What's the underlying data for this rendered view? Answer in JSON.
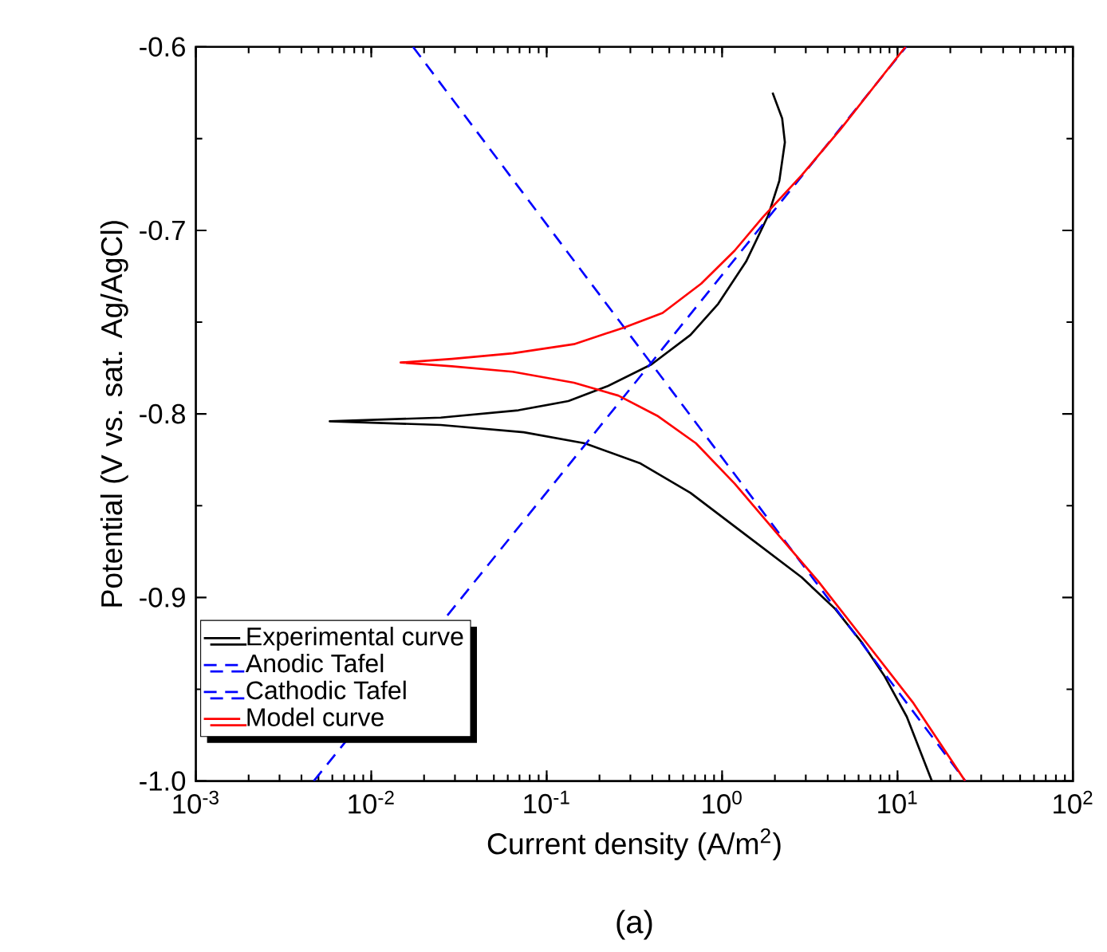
{
  "chart_data": {
    "type": "line",
    "xlabel": "Current density (A/m$^{2}$)",
    "ylabel": "Potential (V vs. sat. Ag/AgCl)",
    "annotations": [
      "(a)"
    ],
    "log": "x",
    "legend": "bottom left",
    "xlim": [
      0.001,
      100
    ],
    "ylim": [
      -1.0,
      -0.6
    ],
    "xticks": [
      {
        "value": 0.001,
        "label": "10$^{-3}$"
      },
      {
        "value": 0.01,
        "label": "10$^{-2}$"
      },
      {
        "value": 0.1,
        "label": "10$^{-1}$"
      },
      {
        "value": 1,
        "label": "10$^{0}$"
      },
      {
        "value": 10,
        "label": "10$^{1}$"
      },
      {
        "value": 100,
        "label": "10$^{2}$"
      }
    ],
    "yticks": [
      {
        "value": -1.0,
        "label": "-1.0"
      },
      {
        "value": -0.9,
        "label": "-0.9"
      },
      {
        "value": -0.8,
        "label": "-0.8"
      },
      {
        "value": -0.7,
        "label": "-0.7"
      },
      {
        "value": -0.6,
        "label": "-0.6"
      }
    ],
    "series": [
      {
        "name": "Experimental curve",
        "color": "#000000",
        "line_style": "solid",
        "x": [
          1.94,
          2.2,
          2.28,
          2.12,
          1.83,
          1.37,
          0.95,
          0.66,
          0.396,
          0.221,
          0.133,
          0.069,
          0.0249,
          0.0058,
          0.0249,
          0.074,
          0.165,
          0.343,
          0.66,
          1.37,
          2.84,
          4.39,
          6.32,
          8.45,
          11.3,
          15.7
        ],
        "values": [
          -0.625,
          -0.639,
          -0.652,
          -0.673,
          -0.692,
          -0.717,
          -0.74,
          -0.757,
          -0.773,
          -0.785,
          -0.793,
          -0.798,
          -0.802,
          -0.804,
          -0.806,
          -0.81,
          -0.816,
          -0.827,
          -0.843,
          -0.866,
          -0.889,
          -0.906,
          -0.925,
          -0.943,
          -0.965,
          -1.0
        ]
      },
      {
        "name": "Anodic Tafel",
        "color": "#0000ff",
        "line_style": "dashed",
        "x": [
          0.0047,
          11.2
        ],
        "values": [
          -1.0,
          -0.6
        ]
      },
      {
        "name": "Cathodic Tafel",
        "color": "#0000ff",
        "line_style": "dashed",
        "x": [
          0.0173,
          24.4
        ],
        "values": [
          -0.6,
          -1.0
        ]
      },
      {
        "name": "Model curve",
        "color": "#ff0000",
        "line_style": "solid",
        "x": [
          11.1,
          7.59,
          4.72,
          2.84,
          1.7,
          1.18,
          0.76,
          0.458,
          0.275,
          0.143,
          0.064,
          0.0288,
          0.0147,
          0.0288,
          0.064,
          0.143,
          0.256,
          0.427,
          0.71,
          1.18,
          1.97,
          3.52,
          6.32,
          12.2,
          24.3
        ],
        "values": [
          -0.6,
          -0.62,
          -0.645,
          -0.67,
          -0.693,
          -0.711,
          -0.729,
          -0.745,
          -0.753,
          -0.762,
          -0.767,
          -0.77,
          -0.772,
          -0.774,
          -0.777,
          -0.783,
          -0.79,
          -0.801,
          -0.816,
          -0.838,
          -0.863,
          -0.891,
          -0.922,
          -0.957,
          -1.0
        ]
      }
    ]
  }
}
